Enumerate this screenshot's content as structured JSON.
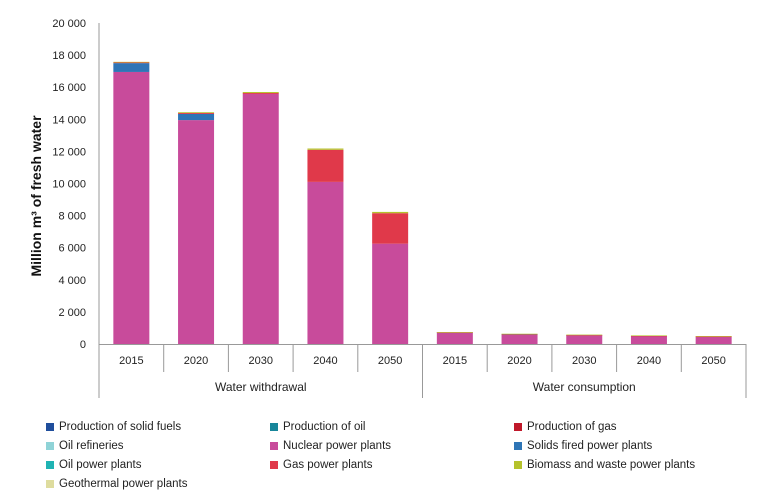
{
  "chart_data": {
    "type": "bar",
    "stacked": true,
    "ylabel": "Million m³ of fresh water",
    "ylim": [
      0,
      20000
    ],
    "yticks": [
      0,
      2000,
      4000,
      6000,
      8000,
      10000,
      12000,
      14000,
      16000,
      18000,
      20000
    ],
    "ytick_labels": [
      "0",
      "2 000",
      "4 000",
      "6 000",
      "8 000",
      "10 000",
      "12 000",
      "14 000",
      "16 000",
      "18 000",
      "20 000"
    ],
    "categories": [
      "2015",
      "2020",
      "2030",
      "2040",
      "2050",
      "2015",
      "2020",
      "2030",
      "2040",
      "2050"
    ],
    "groups": [
      {
        "label": "Water withdrawal",
        "count": 5
      },
      {
        "label": "Water consumption",
        "count": 5
      }
    ],
    "grid": false,
    "legend_position": "bottom",
    "series": [
      {
        "name": "Production of solid fuels",
        "color": "#1f4e9c",
        "values": [
          0,
          0,
          0,
          0,
          0,
          0,
          0,
          0,
          0,
          0
        ]
      },
      {
        "name": "Production of oil",
        "color": "#17869a",
        "values": [
          0,
          0,
          0,
          0,
          0,
          0,
          0,
          0,
          0,
          0
        ]
      },
      {
        "name": "Production of gas",
        "color": "#c0182a",
        "values": [
          0,
          0,
          0,
          0,
          0,
          0,
          0,
          0,
          0,
          0
        ]
      },
      {
        "name": "Oil refineries",
        "color": "#8fd3d7",
        "values": [
          0,
          0,
          0,
          0,
          0,
          0,
          0,
          0,
          0,
          0
        ]
      },
      {
        "name": "Nuclear power plants",
        "color": "#c84b9b",
        "values": [
          16950,
          13950,
          15580,
          10100,
          6250,
          700,
          600,
          560,
          500,
          460
        ]
      },
      {
        "name": "Solids fired power plants",
        "color": "#2e75b6",
        "values": [
          550,
          380,
          0,
          0,
          0,
          20,
          15,
          0,
          0,
          0
        ]
      },
      {
        "name": "Oil power plants",
        "color": "#1fb3b3",
        "values": [
          0,
          0,
          0,
          0,
          0,
          0,
          0,
          0,
          0,
          0
        ]
      },
      {
        "name": "Gas power plants",
        "color": "#e0394a",
        "values": [
          40,
          60,
          60,
          2000,
          1900,
          5,
          5,
          5,
          10,
          10
        ]
      },
      {
        "name": "Biomass and waste power plants",
        "color": "#b5c22c",
        "values": [
          40,
          50,
          60,
          80,
          80,
          15,
          20,
          20,
          25,
          25
        ]
      },
      {
        "name": "Geothermal power plants",
        "color": "#dedc9e",
        "values": [
          0,
          0,
          0,
          0,
          0,
          0,
          0,
          0,
          0,
          0
        ]
      }
    ]
  }
}
